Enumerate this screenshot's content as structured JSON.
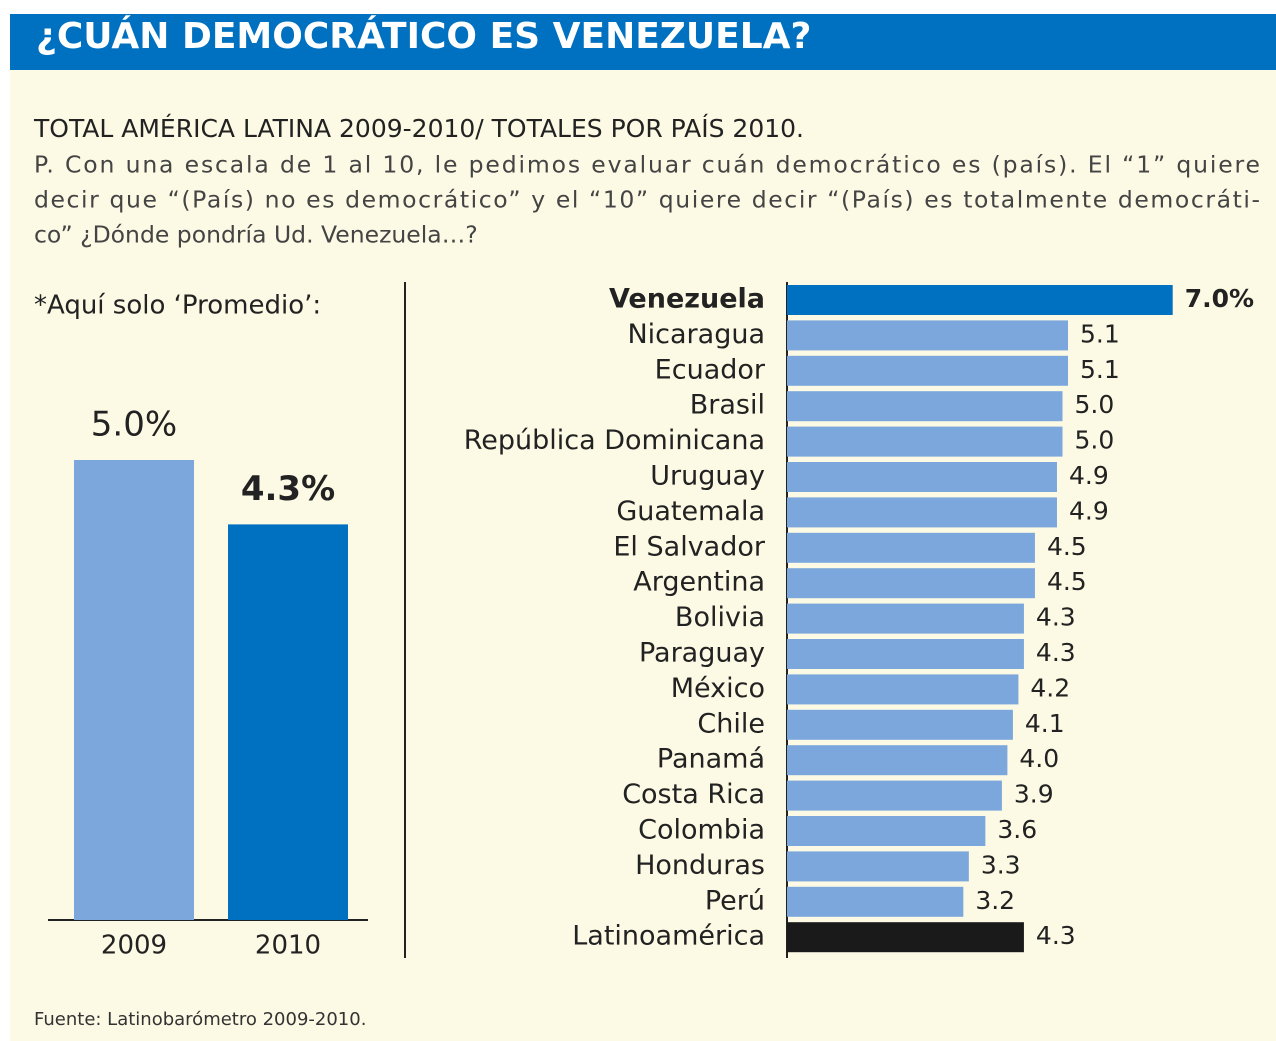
{
  "title": "¿CUÁN DEMOCRÁTICO ES VENEZUELA?",
  "subtitle": "TOTAL AMÉRICA LATINA 2009-2010/ TOTALES POR PAÍS 2010.",
  "question": [
    "P. Con una escala de 1 al 10, le pedimos evaluar cuán democrático es (país). El “1” quiere",
    "decir que “(País) no es democrático” y el “10” quiere decir “(País) es totalmente democráti-",
    "co” ¿Dónde pondría Ud. Venezuela…?"
  ],
  "source": "Fuente: Latinobarómetro 2009-2010.",
  "chart_data": [
    {
      "type": "bar",
      "note": "*Aquí solo ‘Promedio’:",
      "categories": [
        "2009",
        "2010"
      ],
      "values": [
        5.0,
        4.3
      ],
      "value_labels": [
        "5.0%",
        "4.3%"
      ],
      "colors": [
        "#7ba7dc",
        "#0070c0"
      ]
    },
    {
      "type": "hbar",
      "categories": [
        "Venezuela",
        "Nicaragua",
        "Ecuador",
        "Brasil",
        "República Dominicana",
        "Uruguay",
        "Guatemala",
        "El Salvador",
        "Argentina",
        "Bolivia",
        "Paraguay",
        "México",
        "Chile",
        "Panamá",
        "Costa Rica",
        "Colombia",
        "Honduras",
        "Perú",
        "Latinoamérica"
      ],
      "values": [
        7.0,
        5.1,
        5.1,
        5.0,
        5.0,
        4.9,
        4.9,
        4.5,
        4.5,
        4.3,
        4.3,
        4.2,
        4.1,
        4.0,
        3.9,
        3.6,
        3.3,
        3.2,
        4.3
      ],
      "value_labels": [
        "7.0%",
        "5.1",
        "5.1",
        "5.0",
        "5.0",
        "4.9",
        "4.9",
        "4.5",
        "4.5",
        "4.3",
        "4.3",
        "4.2",
        "4.1",
        "4.0",
        "3.9",
        "3.6",
        "3.3",
        "3.2",
        "4.3"
      ],
      "colors": [
        "#0070c0",
        "#7ba7dc",
        "#7ba7dc",
        "#7ba7dc",
        "#7ba7dc",
        "#7ba7dc",
        "#7ba7dc",
        "#7ba7dc",
        "#7ba7dc",
        "#7ba7dc",
        "#7ba7dc",
        "#7ba7dc",
        "#7ba7dc",
        "#7ba7dc",
        "#7ba7dc",
        "#7ba7dc",
        "#7ba7dc",
        "#7ba7dc",
        "#1a1a1a"
      ]
    }
  ]
}
